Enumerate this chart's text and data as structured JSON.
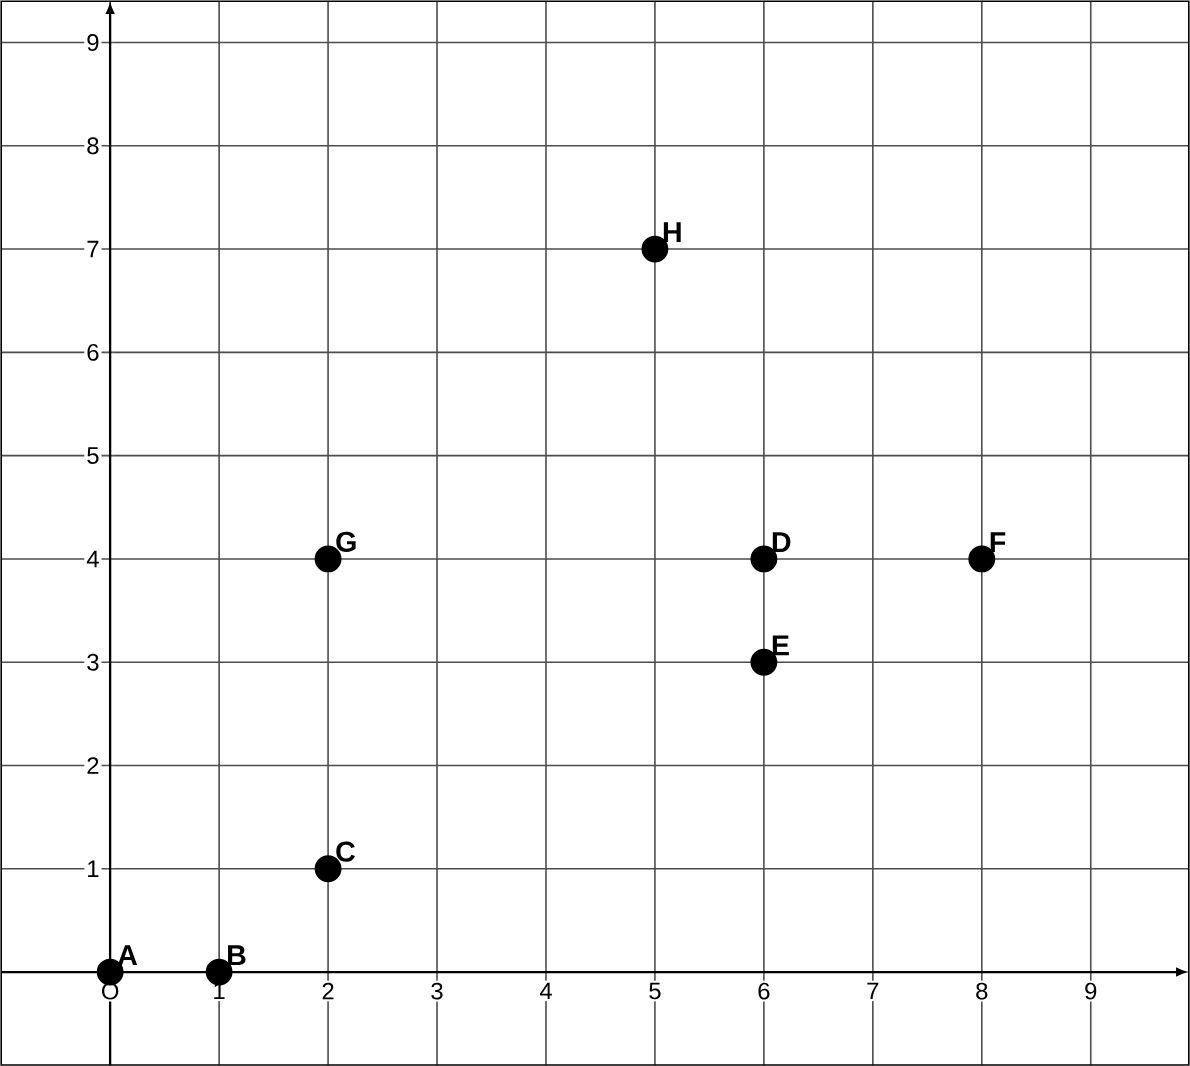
{
  "chart_data": {
    "type": "scatter",
    "x": [
      0,
      1,
      2,
      6,
      6,
      8,
      2,
      5
    ],
    "values": [
      0,
      0,
      1,
      4,
      3,
      4,
      4,
      7
    ],
    "color": "#000000",
    "marker": "circle",
    "xlim": [
      -1,
      9.9
    ],
    "ylim": [
      -0.9,
      9.4
    ],
    "xticks": [
      {
        "value": 0,
        "label": "O"
      },
      1,
      2,
      3,
      4,
      5,
      6,
      7,
      8,
      9
    ],
    "yticks": [
      1,
      2,
      3,
      4,
      5,
      6,
      7,
      8,
      9
    ],
    "grid": true,
    "annotations": [
      {
        "text": "A",
        "x": 0,
        "y": 0
      },
      {
        "text": "B",
        "x": 1,
        "y": 0
      },
      {
        "text": "C",
        "x": 2,
        "y": 1
      },
      {
        "text": "D",
        "x": 6,
        "y": 4
      },
      {
        "text": "E",
        "x": 6,
        "y": 3
      },
      {
        "text": "F",
        "x": 8,
        "y": 4
      },
      {
        "text": "G",
        "x": 2,
        "y": 4
      },
      {
        "text": "H",
        "x": 5,
        "y": 7
      }
    ]
  }
}
